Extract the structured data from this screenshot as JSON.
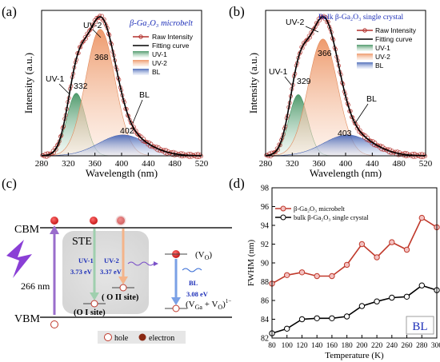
{
  "colors": {
    "uv1_fill": "#cde7d6",
    "uv1_edge": "#3d8f5c",
    "uv2_fill": "#f6c3a5",
    "uv2_edge": "#e08a5c",
    "bl_fill": "#b9c8e8",
    "bl_edge": "#4a67b4",
    "raw": "#b3312d",
    "fit": "#000000",
    "title_blue": "#1d2fb8"
  },
  "panel_a": {
    "label": "(a)",
    "title": "β-Ga₂O₃ microbelt",
    "xlabel": "Wavelength (nm)",
    "ylabel": "Intensity (a.u.)",
    "xticks": [
      "280",
      "320",
      "360",
      "400",
      "440",
      "480",
      "520"
    ],
    "legend": [
      "Raw Intensity",
      "Fitting curve",
      "UV-1",
      "UV-2",
      "BL"
    ],
    "ann_uv2": "UV-2",
    "ann_uv1": "UV-1",
    "ann_bl": "BL",
    "peak_uv2": "368",
    "peak_uv1": "332",
    "peak_bl": "402"
  },
  "panel_b": {
    "label": "(b)",
    "title": "Bulk β-Ga₂O₃ single crystal",
    "xlabel": "Wavelength (nm)",
    "ylabel": "Intensity (a.u.)",
    "xticks": [
      "280",
      "320",
      "360",
      "400",
      "440",
      "480",
      "520"
    ],
    "legend": [
      "Raw Intensity",
      "Fitting curve",
      "UV-1",
      "UV-2",
      "BL"
    ],
    "ann_uv2": "UV-2",
    "ann_uv1": "UV-1",
    "ann_bl": "BL",
    "peak_uv2": "366",
    "peak_uv1": "329",
    "peak_bl": "403"
  },
  "panel_c": {
    "label": "(c)",
    "cbm": "CBM",
    "vbm": "VBM",
    "ste": "STE",
    "excitation": "266 nm",
    "uv1_name": "UV-1",
    "uv1_energy": "3.73 eV",
    "uv2_name": "UV-2",
    "uv2_energy": "3.37 eV",
    "bl_name": "BL",
    "bl_energy": "3.08 eV",
    "site1": "(O I site)",
    "site2": "( O II site)",
    "vo": "(V",
    "vo_sub": "O",
    "vga_vo": "(V",
    "vga_sub": "Ga",
    "vga_plus": " + V",
    "vga_sub2": "O",
    "vga_charge": ")",
    "vga_sup": "1−",
    "legend_hole": "hole",
    "legend_electron": "electron"
  },
  "panel_d": {
    "label": "(d)",
    "xlabel": "Temperature (K)",
    "ylabel": "FWHM (nm)",
    "badge": "BL",
    "yticks": [
      "82",
      "84",
      "86",
      "88",
      "90",
      "92",
      "94",
      "96",
      "98"
    ],
    "xticks": [
      "80",
      "100",
      "120",
      "140",
      "160",
      "180",
      "200",
      "220",
      "240",
      "260",
      "280",
      "300"
    ]
  },
  "chart_data": [
    {
      "type": "line",
      "panel": "a",
      "title": "β-Ga₂O₃ microbelt",
      "xlabel": "Wavelength (nm)",
      "ylabel": "Intensity (a.u.)",
      "xlim": [
        280,
        520
      ],
      "series": [
        {
          "name": "UV-1",
          "peak_nm": 332,
          "rel_height": 0.45
        },
        {
          "name": "UV-2",
          "peak_nm": 368,
          "rel_height": 0.91
        },
        {
          "name": "BL",
          "peak_nm": 402,
          "rel_height": 0.15
        },
        {
          "name": "Fitting curve",
          "peak_nm": 365,
          "rel_height": 1.0
        },
        {
          "name": "Raw Intensity",
          "peak_nm": 365,
          "rel_height": 1.0
        }
      ]
    },
    {
      "type": "line",
      "panel": "b",
      "title": "Bulk β-Ga₂O₃ single crystal",
      "xlabel": "Wavelength (nm)",
      "ylabel": "Intensity (a.u.)",
      "xlim": [
        280,
        520
      ],
      "series": [
        {
          "name": "UV-1",
          "peak_nm": 329,
          "rel_height": 0.44
        },
        {
          "name": "UV-2",
          "peak_nm": 366,
          "rel_height": 0.84
        },
        {
          "name": "BL",
          "peak_nm": 403,
          "rel_height": 0.15
        },
        {
          "name": "Fitting curve",
          "peak_nm": 365,
          "rel_height": 1.0
        },
        {
          "name": "Raw Intensity",
          "peak_nm": 365,
          "rel_height": 1.0
        }
      ]
    },
    {
      "type": "line",
      "panel": "d",
      "xlabel": "Temperature (K)",
      "ylabel": "FWHM (nm)",
      "xlim": [
        80,
        300
      ],
      "ylim": [
        82,
        98
      ],
      "x": [
        80,
        100,
        120,
        140,
        160,
        180,
        200,
        220,
        240,
        260,
        280,
        300
      ],
      "series": [
        {
          "name": "β-Ga₂O₃ microbelt",
          "color": "#c0392b",
          "values": [
            87.8,
            88.7,
            89.0,
            88.6,
            88.6,
            89.8,
            92.0,
            90.6,
            92.2,
            91.4,
            94.8,
            93.8
          ]
        },
        {
          "name": "bulk β-Ga₂O₃ single crystal",
          "color": "#000000",
          "values": [
            82.5,
            83.0,
            84.0,
            84.1,
            84.1,
            84.3,
            85.4,
            85.9,
            86.3,
            86.4,
            87.6,
            87.1
          ]
        }
      ]
    }
  ]
}
